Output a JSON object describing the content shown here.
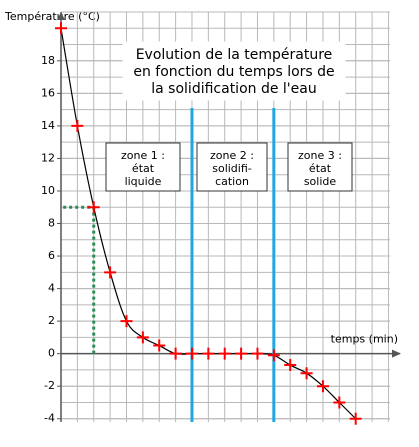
{
  "chart_data": {
    "type": "line",
    "y_label": "Température (°C)",
    "x_label": "temps (min)",
    "title": [
      "Evolution de la température",
      "en fonction du temps lors de",
      "la solidification de l'eau"
    ],
    "zones": [
      [
        "zone 1 :",
        "état",
        "liquide"
      ],
      [
        "zone 2 :",
        "solidifi-",
        "cation"
      ],
      [
        "zone 3 :",
        "état",
        "solide"
      ]
    ],
    "zone_bounds": [
      8,
      13
    ],
    "zone_color": "#1ea7e1",
    "x": [
      0,
      1,
      2,
      3,
      4,
      5,
      6,
      7,
      8,
      9,
      10,
      11,
      12,
      13,
      14,
      15,
      16,
      17,
      18
    ],
    "series": [
      {
        "color": "#ff0000",
        "values": [
          20,
          14,
          9,
          5,
          2,
          1,
          0.5,
          0,
          0,
          0,
          0,
          0,
          0,
          -0.1,
          -0.7,
          -1.2,
          -2,
          -3,
          -4
        ]
      }
    ],
    "highlight_index": 2,
    "highlight_color": "#2e8b57",
    "xlim": [
      0,
      20.4
    ],
    "ylim": [
      -4.2,
      21
    ],
    "yticks": [
      -4,
      -2,
      0,
      2,
      4,
      6,
      8,
      10,
      12,
      14,
      16,
      18
    ],
    "grid": true
  }
}
